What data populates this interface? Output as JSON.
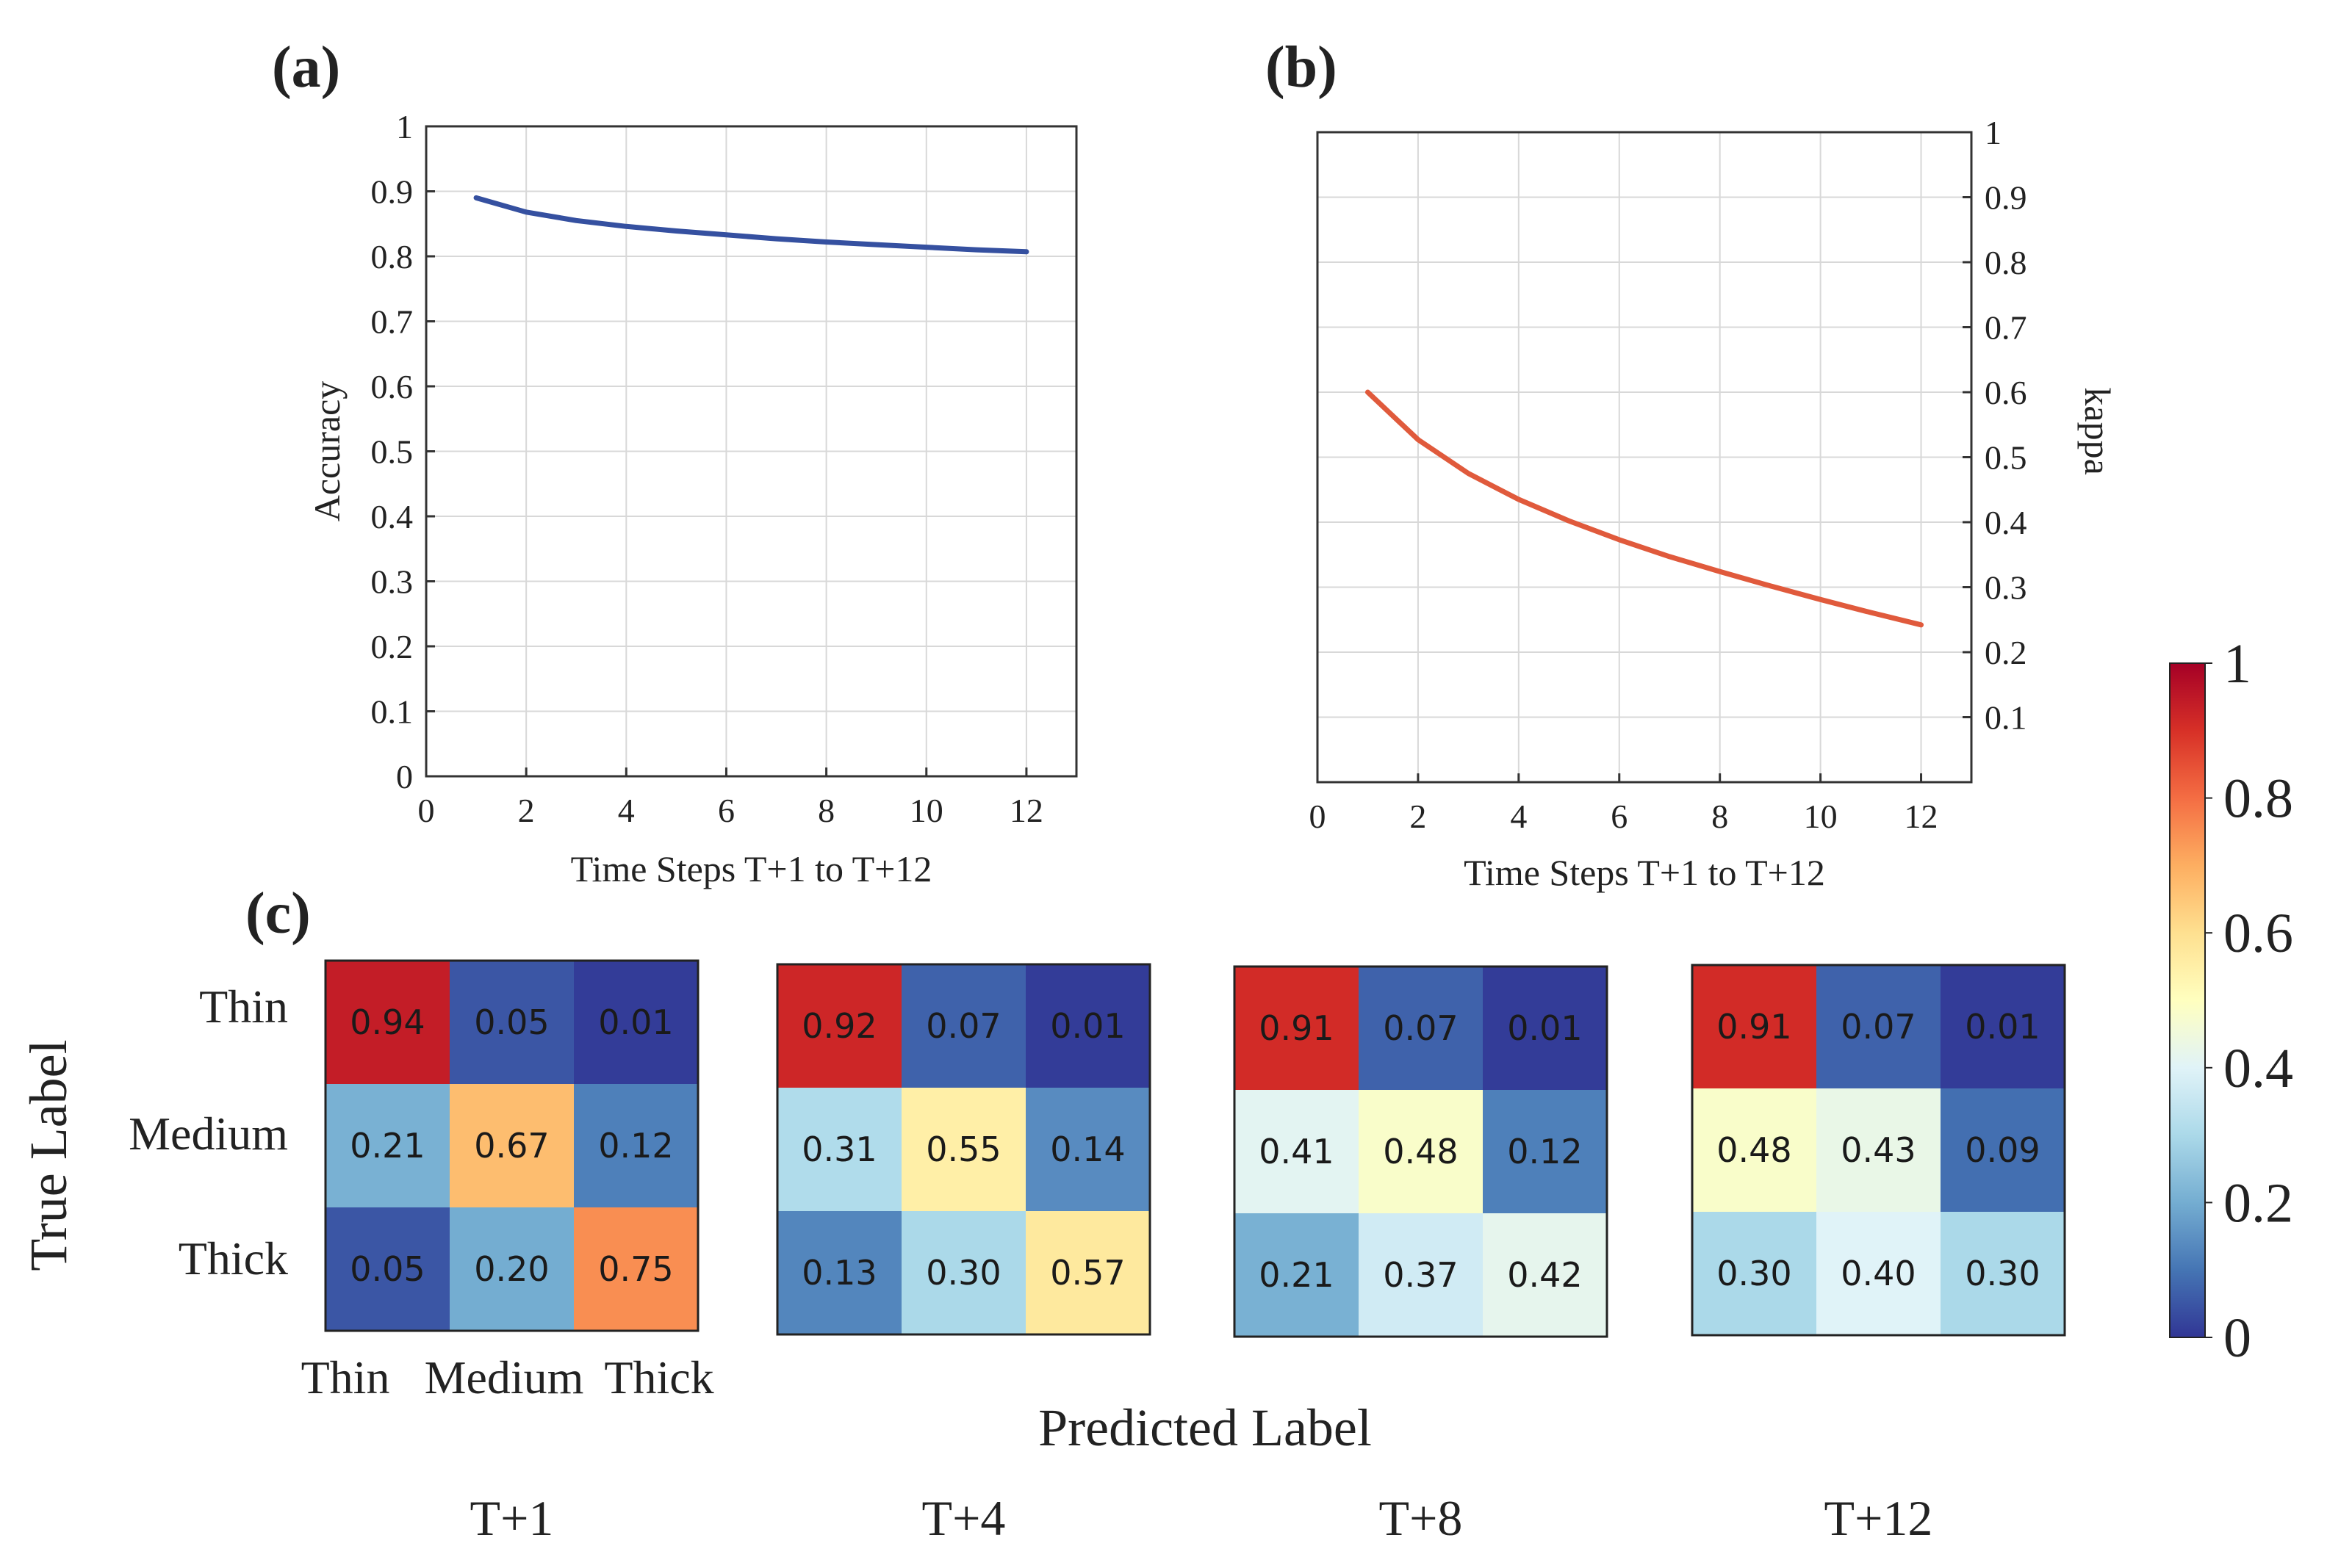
{
  "chart_data": [
    {
      "id": "a",
      "panel_label": "(a)",
      "type": "line",
      "xlabel": "Time Steps T+1 to T+12",
      "ylabel": "Accuracy",
      "xlim": [
        0,
        13
      ],
      "ylim": [
        0,
        1
      ],
      "xticks": [
        "0",
        "2",
        "4",
        "6",
        "8",
        "10",
        "12"
      ],
      "yticks": [
        "0",
        "0.1",
        "0.2",
        "0.3",
        "0.4",
        "0.5",
        "0.6",
        "0.7",
        "0.8",
        "0.9",
        "1"
      ],
      "grid": true,
      "y_axis_side": "left",
      "series": [
        {
          "name": "Accuracy",
          "color": "#3550a0",
          "x": [
            1,
            2,
            3,
            4,
            5,
            6,
            7,
            8,
            9,
            10,
            11,
            12
          ],
          "values": [
            0.89,
            0.868,
            0.855,
            0.846,
            0.839,
            0.833,
            0.827,
            0.822,
            0.818,
            0.814,
            0.81,
            0.807
          ]
        }
      ]
    },
    {
      "id": "b",
      "panel_label": "(b)",
      "type": "line",
      "xlabel": "Time Steps T+1 to T+12",
      "ylabel": "kappa",
      "xlim": [
        0,
        13
      ],
      "ylim": [
        0,
        1
      ],
      "xticks": [
        "0",
        "2",
        "4",
        "6",
        "8",
        "10",
        "12"
      ],
      "yticks": [
        "0.1",
        "0.2",
        "0.3",
        "0.4",
        "0.5",
        "0.6",
        "0.7",
        "0.8",
        "0.9",
        "1"
      ],
      "grid": true,
      "y_axis_side": "right",
      "series": [
        {
          "name": "kappa",
          "color": "#e05a3c",
          "x": [
            1,
            2,
            3,
            4,
            5,
            6,
            7,
            8,
            9,
            10,
            11,
            12
          ],
          "values": [
            0.6,
            0.527,
            0.475,
            0.435,
            0.402,
            0.373,
            0.347,
            0.324,
            0.302,
            0.281,
            0.261,
            0.242
          ]
        }
      ]
    },
    {
      "id": "c",
      "panel_label": "(c)",
      "type": "heatmap",
      "ylabel": "True Label",
      "xlabel": "Predicted Label",
      "row_labels": [
        "Thin",
        "Medium",
        "Thick"
      ],
      "col_labels": [
        "Thin",
        "Medium",
        "Thick"
      ],
      "colormap": "RdYlBu_r",
      "colorbar": {
        "min": 0,
        "max": 1,
        "ticks": [
          "0",
          "0.2",
          "0.4",
          "0.6",
          "0.8",
          "1"
        ]
      },
      "matrices": [
        {
          "title": "T+1",
          "values": [
            [
              "0.94",
              "0.05",
              "0.01"
            ],
            [
              "0.21",
              "0.67",
              "0.12"
            ],
            [
              "0.05",
              "0.20",
              "0.75"
            ]
          ]
        },
        {
          "title": "T+4",
          "values": [
            [
              "0.92",
              "0.07",
              "0.01"
            ],
            [
              "0.31",
              "0.55",
              "0.14"
            ],
            [
              "0.13",
              "0.30",
              "0.57"
            ]
          ]
        },
        {
          "title": "T+8",
          "values": [
            [
              "0.91",
              "0.07",
              "0.01"
            ],
            [
              "0.41",
              "0.48",
              "0.12"
            ],
            [
              "0.21",
              "0.37",
              "0.42"
            ]
          ]
        },
        {
          "title": "T+12",
          "values": [
            [
              "0.91",
              "0.07",
              "0.01"
            ],
            [
              "0.48",
              "0.43",
              "0.09"
            ],
            [
              "0.30",
              "0.40",
              "0.30"
            ]
          ]
        }
      ]
    }
  ]
}
